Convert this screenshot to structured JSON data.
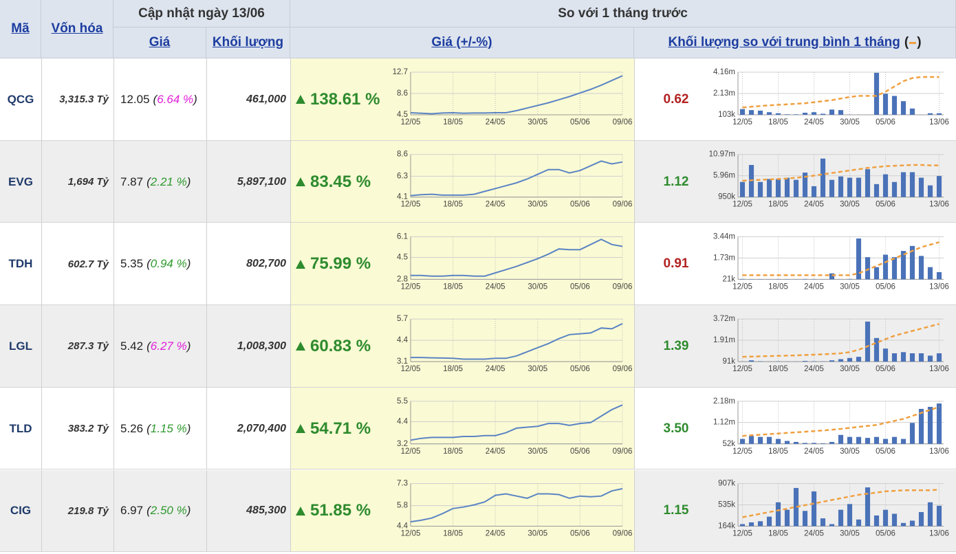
{
  "header": {
    "ma": "Mã",
    "von_hoa": "Vốn hóa",
    "cap_nhat": "Cập nhật ngày 13/06",
    "gia": "Giá",
    "khoi_luong": "Khối lượng",
    "so_voi": "So với 1 tháng trước",
    "gia_pct": "Giá (+/-%)",
    "kl_tb": "Khối lượng so với trung bình 1 tháng"
  },
  "price_dates": [
    "12/05",
    null,
    null,
    null,
    "18/05",
    null,
    null,
    null,
    "24/05",
    null,
    null,
    null,
    "30/05",
    null,
    null,
    null,
    "05/06",
    null,
    null,
    null,
    "09/06"
  ],
  "volume_dates": [
    "12/05",
    null,
    null,
    null,
    "18/05",
    null,
    null,
    null,
    "24/05",
    null,
    null,
    null,
    "30/05",
    null,
    null,
    null,
    "05/06",
    null,
    null,
    null,
    null,
    null,
    "13/06"
  ],
  "rows": [
    {
      "ma": "QCG",
      "von_hoa": "3,315.3 Tỷ",
      "gia": "12.05",
      "thay_doi": "6.64 %",
      "thay_doi_color": "#e020d8",
      "khoi_luong": "461,000",
      "tang": "138.61 %",
      "ty_le": "0.62",
      "ty_le_color": "#b22222",
      "price_chart": {
        "type": "line",
        "color": "#5b84c4",
        "ylim": [
          4.5,
          12.7
        ],
        "yticks": [
          4.5,
          8.6,
          12.7
        ],
        "values": [
          4.9,
          4.8,
          4.7,
          4.85,
          4.9,
          4.8,
          4.85,
          4.85,
          4.9,
          4.9,
          5.3,
          5.8,
          6.3,
          6.8,
          7.4,
          8.0,
          8.7,
          9.4,
          10.2,
          11.1,
          12.0
        ]
      },
      "volume_chart": {
        "type": "bar",
        "ylim": [
          103000,
          4160000
        ],
        "yticks": [
          {
            "value": 103000,
            "label": "103k"
          },
          {
            "value": 2130000,
            "label": "2.13m"
          },
          {
            "value": 4160000,
            "label": "4.16m"
          }
        ],
        "series": [
          {
            "type": "bar",
            "color": "#4a72b8",
            "values": [
              650000,
              550000,
              500000,
              350000,
              250000,
              150000,
              150000,
              300000,
              350000,
              200000,
              600000,
              550000,
              120000,
              110000,
              105000,
              4100000,
              2100000,
              1900000,
              1400000,
              700000,
              110000,
              250000,
              250000
            ]
          },
          {
            "type": "line",
            "color": "#f0a040",
            "dashed": true,
            "values": [
              800000,
              870000,
              940000,
              1000000,
              1050000,
              1100000,
              1150000,
              1200000,
              1300000,
              1400000,
              1500000,
              1650000,
              1800000,
              1900000,
              1900000,
              1900000,
              2300000,
              2800000,
              3300000,
              3600000,
              3700000,
              3700000,
              3700000
            ]
          }
        ]
      }
    },
    {
      "ma": "EVG",
      "von_hoa": "1,694 Tỷ",
      "gia": "7.87",
      "thay_doi": "2.21 %",
      "thay_doi_color": "#2e9a2e",
      "khoi_luong": "5,897,100",
      "tang": "83.45 %",
      "ty_le": "1.12",
      "ty_le_color": "#2e8b2e",
      "price_chart": {
        "type": "line",
        "color": "#5b84c4",
        "ylim": [
          4.1,
          8.6
        ],
        "yticks": [
          4.1,
          6.3,
          8.6
        ],
        "values": [
          4.25,
          4.35,
          4.4,
          4.3,
          4.3,
          4.3,
          4.4,
          4.7,
          5.0,
          5.3,
          5.6,
          6.0,
          6.5,
          7.0,
          7.0,
          6.65,
          6.9,
          7.4,
          7.9,
          7.6,
          7.8
        ]
      },
      "volume_chart": {
        "type": "bar",
        "ylim": [
          950000,
          10970000
        ],
        "yticks": [
          {
            "value": 950000,
            "label": "950k"
          },
          {
            "value": 5960000,
            "label": "5.96m"
          },
          {
            "value": 10970000,
            "label": "10.97m"
          }
        ],
        "series": [
          {
            "type": "bar",
            "color": "#4a72b8",
            "values": [
              4500000,
              8500000,
              4500000,
              5200000,
              5200000,
              5500000,
              5000000,
              6700000,
              3500000,
              10000000,
              5000000,
              5800000,
              5500000,
              5500000,
              7500000,
              4000000,
              6300000,
              4500000,
              6800000,
              6800000,
              5500000,
              3700000,
              5900000
            ]
          },
          {
            "type": "line",
            "color": "#f0a040",
            "dashed": true,
            "values": [
              4800000,
              4900000,
              5000000,
              5100000,
              5200000,
              5300000,
              5500000,
              5700000,
              6000000,
              6300000,
              6600000,
              6900000,
              7200000,
              7500000,
              7800000,
              8000000,
              8200000,
              8300000,
              8400000,
              8500000,
              8500000,
              8400000,
              8400000
            ]
          }
        ]
      }
    },
    {
      "ma": "TDH",
      "von_hoa": "602.7 Tỷ",
      "gia": "5.35",
      "thay_doi": "0.94 %",
      "thay_doi_color": "#2e9a2e",
      "khoi_luong": "802,700",
      "tang": "75.99 %",
      "ty_le": "0.91",
      "ty_le_color": "#b22222",
      "price_chart": {
        "type": "line",
        "color": "#5b84c4",
        "ylim": [
          2.8,
          6.1
        ],
        "yticks": [
          2.8,
          4.5,
          6.1
        ],
        "values": [
          3.1,
          3.1,
          3.05,
          3.05,
          3.1,
          3.1,
          3.05,
          3.05,
          3.3,
          3.55,
          3.8,
          4.1,
          4.4,
          4.75,
          5.15,
          5.1,
          5.1,
          5.5,
          5.9,
          5.5,
          5.35
        ]
      },
      "volume_chart": {
        "type": "bar",
        "ylim": [
          21000,
          3440000
        ],
        "yticks": [
          {
            "value": 21000,
            "label": "21k"
          },
          {
            "value": 1730000,
            "label": "1.73m"
          },
          {
            "value": 3440000,
            "label": "3.44m"
          }
        ],
        "series": [
          {
            "type": "bar",
            "color": "#4a72b8",
            "values": [
              50000,
              40000,
              40000,
              30000,
              40000,
              40000,
              30000,
              50000,
              40000,
              30000,
              500000,
              30000,
              50000,
              3300000,
              1800000,
              1000000,
              2000000,
              1800000,
              2300000,
              2700000,
              1900000,
              1000000,
              600000
            ]
          },
          {
            "type": "line",
            "color": "#f0a040",
            "dashed": true,
            "values": [
              350000,
              350000,
              350000,
              350000,
              350000,
              350000,
              350000,
              350000,
              350000,
              350000,
              350000,
              350000,
              350000,
              500000,
              800000,
              1100000,
              1400000,
              1700000,
              2000000,
              2300000,
              2600000,
              2800000,
              3000000
            ]
          }
        ]
      }
    },
    {
      "ma": "LGL",
      "von_hoa": "287.3 Tỷ",
      "gia": "5.42",
      "thay_doi": "6.27 %",
      "thay_doi_color": "#e020d8",
      "khoi_luong": "1,008,300",
      "tang": "60.83 %",
      "ty_le": "1.39",
      "ty_le_color": "#2e8b2e",
      "price_chart": {
        "type": "line",
        "color": "#5b84c4",
        "ylim": [
          3.1,
          5.7
        ],
        "yticks": [
          3.1,
          4.4,
          5.7
        ],
        "values": [
          3.35,
          3.35,
          3.33,
          3.32,
          3.3,
          3.25,
          3.25,
          3.25,
          3.3,
          3.3,
          3.45,
          3.7,
          3.95,
          4.2,
          4.5,
          4.75,
          4.8,
          4.85,
          5.15,
          5.1,
          5.42
        ]
      },
      "volume_chart": {
        "type": "bar",
        "ylim": [
          91000,
          3720000
        ],
        "yticks": [
          {
            "value": 91000,
            "label": "91k"
          },
          {
            "value": 1910000,
            "label": "1.91m"
          },
          {
            "value": 3720000,
            "label": "3.72m"
          }
        ],
        "series": [
          {
            "type": "bar",
            "color": "#4a72b8",
            "values": [
              100000,
              200000,
              120000,
              100000,
              110000,
              100000,
              100000,
              150000,
              120000,
              110000,
              200000,
              300000,
              400000,
              500000,
              3500000,
              2100000,
              1200000,
              800000,
              900000,
              800000,
              800000,
              600000,
              800000
            ]
          },
          {
            "type": "line",
            "color": "#f0a040",
            "dashed": true,
            "values": [
              500000,
              520000,
              540000,
              560000,
              580000,
              600000,
              620000,
              650000,
              680000,
              710000,
              750000,
              800000,
              900000,
              1100000,
              1400000,
              1700000,
              2000000,
              2300000,
              2500000,
              2700000,
              2900000,
              3100000,
              3300000
            ]
          }
        ]
      }
    },
    {
      "ma": "TLD",
      "von_hoa": "383.2 Tỷ",
      "gia": "5.26",
      "thay_doi": "1.15 %",
      "thay_doi_color": "#2e9a2e",
      "khoi_luong": "2,070,400",
      "tang": "54.71 %",
      "ty_le": "3.50",
      "ty_le_color": "#2e8b2e",
      "price_chart": {
        "type": "line",
        "color": "#5b84c4",
        "ylim": [
          3.2,
          5.5
        ],
        "yticks": [
          3.2,
          4.4,
          5.5
        ],
        "values": [
          3.4,
          3.5,
          3.55,
          3.55,
          3.55,
          3.6,
          3.6,
          3.65,
          3.65,
          3.8,
          4.05,
          4.1,
          4.15,
          4.3,
          4.3,
          4.2,
          4.3,
          4.35,
          4.7,
          5.05,
          5.3
        ]
      },
      "volume_chart": {
        "type": "bar",
        "ylim": [
          52000,
          2180000
        ],
        "yticks": [
          {
            "value": 52000,
            "label": "52k"
          },
          {
            "value": 1120000,
            "label": "1.12m"
          },
          {
            "value": 2180000,
            "label": "2.18m"
          }
        ],
        "series": [
          {
            "type": "bar",
            "color": "#4a72b8",
            "values": [
              300000,
              450000,
              400000,
              400000,
              300000,
              200000,
              150000,
              100000,
              100000,
              80000,
              150000,
              500000,
              400000,
              400000,
              350000,
              400000,
              300000,
              400000,
              300000,
              1100000,
              1800000,
              1900000,
              2070000
            ]
          },
          {
            "type": "line",
            "color": "#f0a040",
            "dashed": true,
            "values": [
              450000,
              480000,
              510000,
              540000,
              570000,
              600000,
              630000,
              660000,
              690000,
              720000,
              760000,
              800000,
              850000,
              900000,
              950000,
              1000000,
              1100000,
              1200000,
              1300000,
              1450000,
              1600000,
              1750000,
              1900000
            ]
          }
        ]
      }
    },
    {
      "ma": "CIG",
      "von_hoa": "219.8 Tỷ",
      "gia": "6.97",
      "thay_doi": "2.50 %",
      "thay_doi_color": "#2e9a2e",
      "khoi_luong": "485,300",
      "tang": "51.85 %",
      "ty_le": "1.15",
      "ty_le_color": "#2e8b2e",
      "price_chart": {
        "type": "line",
        "color": "#5b84c4",
        "ylim": [
          4.4,
          7.3
        ],
        "yticks": [
          4.4,
          5.8,
          7.3
        ],
        "values": [
          4.7,
          4.8,
          4.95,
          5.25,
          5.6,
          5.7,
          5.85,
          6.05,
          6.5,
          6.6,
          6.45,
          6.3,
          6.6,
          6.6,
          6.55,
          6.3,
          6.45,
          6.4,
          6.45,
          6.8,
          6.95
        ]
      },
      "volume_chart": {
        "type": "bar",
        "ylim": [
          164000,
          907000
        ],
        "yticks": [
          {
            "value": 164000,
            "label": "164k"
          },
          {
            "value": 535000,
            "label": "535k"
          },
          {
            "value": 907000,
            "label": "907k"
          }
        ],
        "series": [
          {
            "type": "bar",
            "color": "#4a72b8",
            "values": [
              200000,
              230000,
              250000,
              330000,
              580000,
              450000,
              830000,
              430000,
              770000,
              300000,
              200000,
              450000,
              550000,
              280000,
              840000,
              350000,
              450000,
              380000,
              220000,
              260000,
              410000,
              580000,
              520000
            ]
          },
          {
            "type": "line",
            "color": "#f0a040",
            "dashed": true,
            "values": [
              320000,
              350000,
              380000,
              410000,
              440000,
              470000,
              500000,
              530000,
              560000,
              590000,
              620000,
              650000,
              680000,
              710000,
              730000,
              750000,
              770000,
              780000,
              790000,
              790000,
              790000,
              790000,
              800000
            ]
          }
        ]
      }
    }
  ]
}
